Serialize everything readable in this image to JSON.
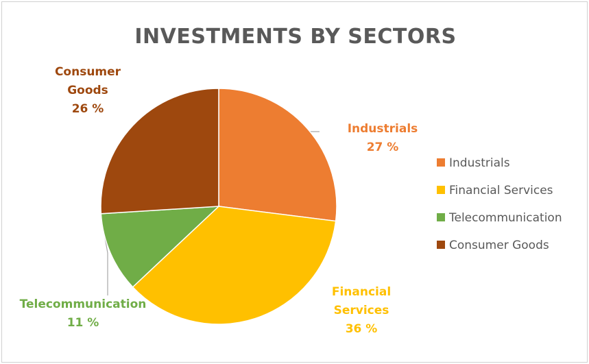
{
  "chart_data": {
    "type": "pie",
    "title": "INVESTMENTS BY SECTORS",
    "categories": [
      "Industrials",
      "Financial Services",
      "Telecommunication",
      "Consumer Goods"
    ],
    "values": [
      27,
      36,
      11,
      26
    ],
    "value_labels": [
      "27 %",
      "36 %",
      "11 %",
      "26 %"
    ],
    "slice_labels": [
      [
        "Industrials"
      ],
      [
        "Financial",
        "Services"
      ],
      [
        "Telecommunication"
      ],
      [
        "Consumer",
        "Goods"
      ]
    ],
    "colors": [
      "#ED7D31",
      "#FFC000",
      "#70AD47",
      "#9E480E"
    ],
    "legend_position": "right"
  }
}
